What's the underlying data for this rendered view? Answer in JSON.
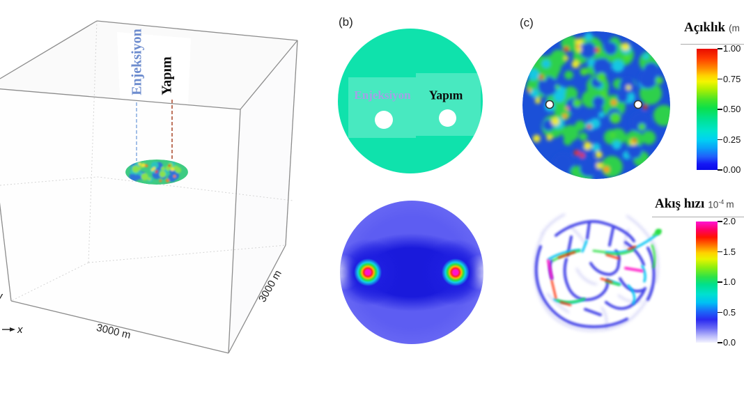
{
  "panel_a": {
    "injection_label": "Enjeksiyon",
    "production_label": "Yapım",
    "bottom_edge_label": "3000 m",
    "right_edge_label": "3000 m",
    "x_axis_label": "x",
    "y_axis_label": "y",
    "injection_color": "#6d8cce",
    "production_color": "#111111"
  },
  "panel_b": {
    "tag": "(b)",
    "injection_label": "Enjeksiyon",
    "production_label": "Yapım",
    "disk_color": "#0fe2ac",
    "injection_text_color": "#a3a0e6",
    "production_text_color": "#0a0a0a"
  },
  "panel_c": {
    "tag": "(c)"
  },
  "aperture_colorbar": {
    "title": "Açıklık",
    "unit": "(m",
    "tick_labels": [
      "1.00",
      "0.75",
      "0.50",
      "0.25",
      "0.00"
    ],
    "top_color": "#e80c00",
    "bottom_color": "#0a0ae8"
  },
  "velocity_colorbar": {
    "title": "Akış hızı",
    "unit_mantissa": "10",
    "unit_exponent": "-4",
    "unit_tail": "m",
    "tick_labels": [
      "2.0",
      "1.5",
      "1.0",
      "0.5",
      "0.0"
    ],
    "top_color": "#ff14d2",
    "bottom_color": "#f4f4ff"
  }
}
